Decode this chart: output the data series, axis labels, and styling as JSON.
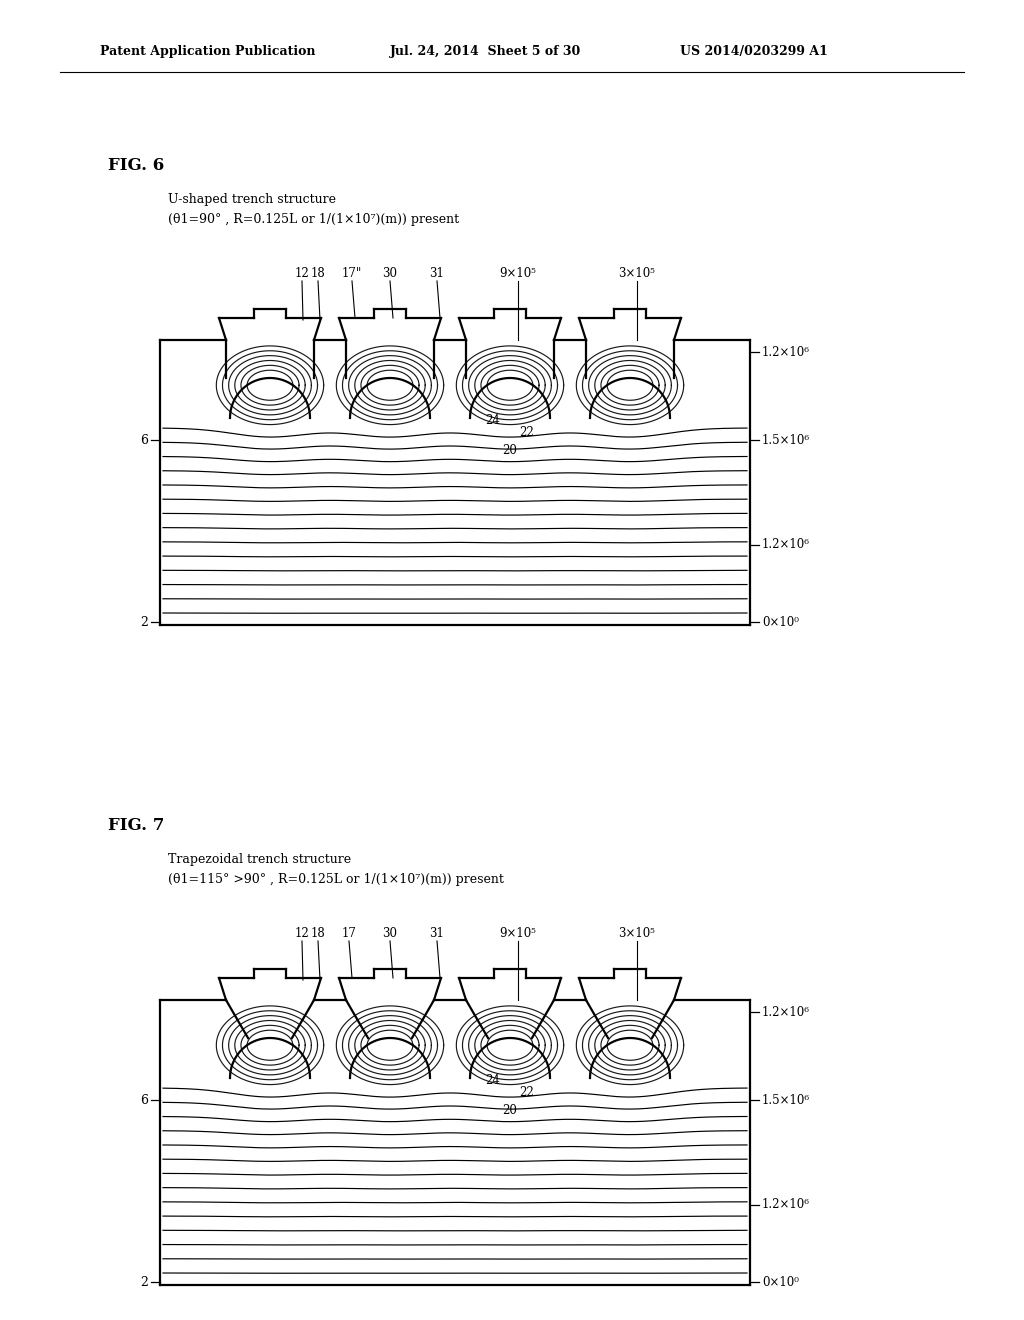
{
  "bg_color": "#ffffff",
  "page_header_left": "Patent Application Publication",
  "page_header_mid": "Jul. 24, 2014  Sheet 5 of 30",
  "page_header_right": "US 2014/0203299 A1",
  "fig6_label": "FIG. 6",
  "fig6_title_line1": "U-shaped trench structure",
  "fig6_title_line2": "(θ1=90° , R=0.125L or 1/(1×10⁷)(m)) present",
  "fig7_label": "FIG. 7",
  "fig7_title_line1": "Trapezoidal trench structure",
  "fig7_title_line2": "(θ1=115° >90° , R=0.125L or 1/(1×10⁷)(m)) present",
  "right_labels": [
    "1.2×10⁶",
    "1.5×10⁶",
    "1.2×10⁶",
    "0×10⁰"
  ],
  "top_labels_fig6": [
    "12",
    "18",
    "17\"",
    "30",
    "31",
    "9×10⁵",
    "3×10⁵"
  ],
  "top_labels_fig7": [
    "12",
    "18",
    "17",
    "30",
    "31",
    "9×10⁵",
    "3×10⁵"
  ]
}
